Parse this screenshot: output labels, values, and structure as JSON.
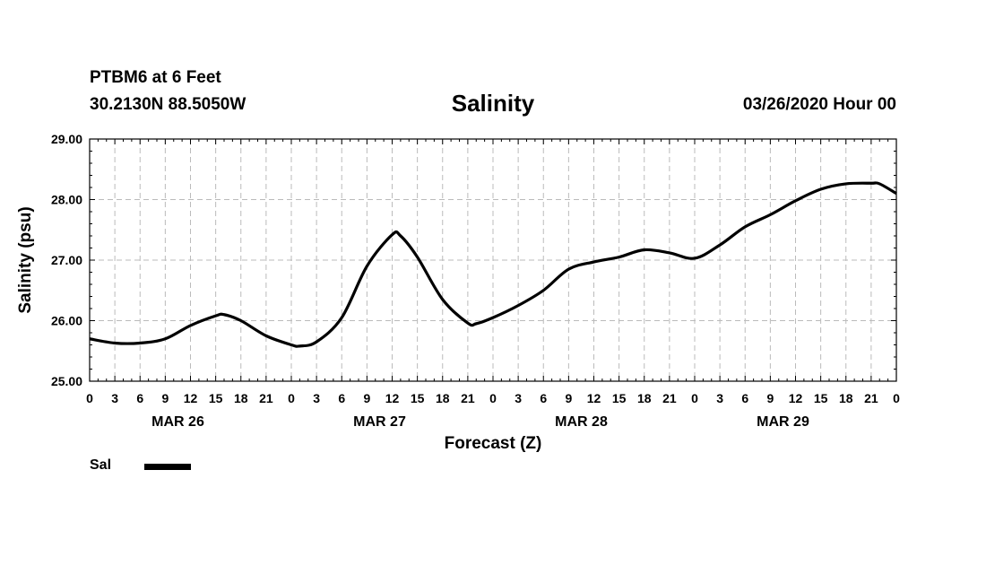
{
  "header": {
    "station": "PTBM6 at 6 Feet",
    "coords": "30.2130N 88.5050W",
    "title": "Salinity",
    "timestamp": "03/26/2020 Hour 00"
  },
  "legend": {
    "label": "Sal",
    "color": "#000000"
  },
  "chart_data": {
    "type": "line",
    "title": "Salinity",
    "xlabel": "Forecast (Z)",
    "ylabel": "Salinity (psu)",
    "ylim": [
      25.0,
      29.0
    ],
    "y_ticks": [
      "25.00",
      "26.00",
      "27.00",
      "28.00",
      "29.00"
    ],
    "xlim_hours": [
      0,
      96
    ],
    "x_tick_labels": [
      "0",
      "3",
      "6",
      "9",
      "12",
      "15",
      "18",
      "21",
      "0",
      "3",
      "6",
      "9",
      "12",
      "15",
      "18",
      "21",
      "0",
      "3",
      "6",
      "9",
      "12",
      "15",
      "18",
      "21",
      "0",
      "3",
      "6",
      "9",
      "12",
      "15",
      "18",
      "21",
      "0"
    ],
    "day_labels": [
      "MAR 26",
      "MAR 27",
      "MAR 28",
      "MAR 29"
    ],
    "grid": true,
    "series": [
      {
        "name": "Sal",
        "color": "#000000",
        "x": [
          0,
          3,
          6,
          9,
          12,
          15,
          16,
          18,
          21,
          24,
          25,
          27,
          30,
          33,
          36,
          37,
          39,
          42,
          45,
          46,
          48,
          51,
          54,
          57,
          60,
          63,
          66,
          69,
          72,
          75,
          78,
          81,
          84,
          87,
          90,
          93,
          94,
          96
        ],
        "values": [
          25.7,
          25.63,
          25.63,
          25.7,
          25.92,
          26.08,
          26.1,
          26.0,
          25.75,
          25.6,
          25.58,
          25.65,
          26.05,
          26.9,
          27.42,
          27.4,
          27.05,
          26.35,
          25.96,
          25.95,
          26.05,
          26.25,
          26.5,
          26.85,
          26.97,
          27.05,
          27.17,
          27.12,
          27.03,
          27.25,
          27.55,
          27.75,
          27.98,
          28.17,
          28.26,
          28.27,
          28.26,
          28.1
        ]
      }
    ]
  }
}
